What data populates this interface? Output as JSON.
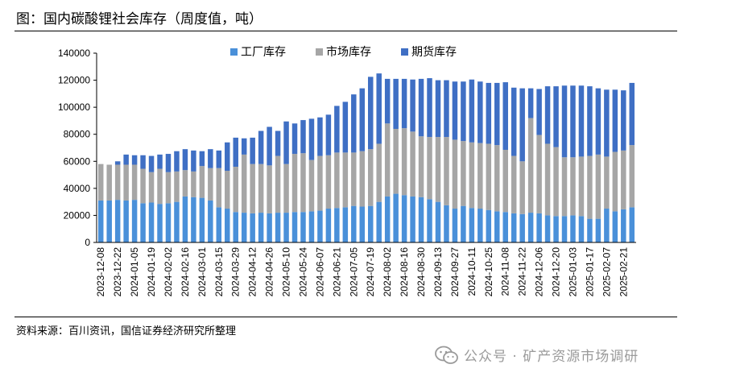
{
  "header": {
    "title": "图：国内碳酸锂社会库存（周度值，吨）"
  },
  "footer": {
    "source": "资料来源：百川资讯，国信证券经济研究所整理",
    "watermark": "公众号 · 矿产资源市场调研",
    "watermark_icon": "wechat-icon"
  },
  "colors": {
    "factory": "#4a90d9",
    "market": "#a6a6a6",
    "futures": "#3f6fc4"
  },
  "chart_data": {
    "type": "bar",
    "stacked": true,
    "ylim": [
      0,
      140000
    ],
    "yticks": [
      0,
      20000,
      40000,
      60000,
      80000,
      100000,
      120000,
      140000
    ],
    "ytick_labels": [
      "0",
      "20000",
      "40000",
      "60000",
      "80000",
      "100000",
      "120000",
      "140000"
    ],
    "legend_position": "top-center",
    "x_tick_labels": [
      "2023-12-08",
      "2023-12-22",
      "2024-01-05",
      "2024-01-19",
      "2024-02-02",
      "2024-02-16",
      "2024-03-01",
      "2024-03-15",
      "2024-03-29",
      "2024-04-12",
      "2024-04-26",
      "2024-05-10",
      "2024-05-24",
      "2024-06-07",
      "2024-06-21",
      "2024-07-05",
      "2024-07-19",
      "2024-08-02",
      "2024-08-16",
      "2024-08-30",
      "2024-09-13",
      "2024-09-27",
      "2024-10-11",
      "2024-10-25",
      "2024-11-08",
      "2024-11-22",
      "2024-12-06",
      "2024-12-20",
      "2025-01-03",
      "2025-01-17",
      "2025-02-07",
      "2025-02-21"
    ],
    "series": [
      {
        "name": "工厂库存",
        "color": "#4a90d9",
        "values": [
          31000,
          31000,
          31500,
          31000,
          31500,
          29000,
          29500,
          28500,
          29000,
          30000,
          34000,
          33500,
          33000,
          31000,
          26000,
          25000,
          22500,
          22000,
          21500,
          22000,
          21500,
          22000,
          22000,
          22500,
          22500,
          23000,
          23500,
          25000,
          25500,
          26000,
          27000,
          26500,
          27000,
          30000,
          34000,
          36000,
          35000,
          34000,
          33500,
          32000,
          30000,
          27500,
          25000,
          27000,
          25500,
          25000,
          24000,
          23000,
          22500,
          21500,
          21000,
          22000,
          21500,
          20000,
          19500,
          19500,
          20000,
          19500,
          17500,
          17500,
          25000,
          23000,
          24500,
          26000
        ]
      },
      {
        "name": "市场库存",
        "color": "#a6a6a6",
        "values": [
          27000,
          26500,
          26000,
          26500,
          26000,
          25500,
          22500,
          26000,
          23000,
          22500,
          19500,
          19000,
          23500,
          24000,
          29000,
          28000,
          33500,
          43000,
          36500,
          36000,
          35500,
          42000,
          36000,
          43000,
          43500,
          38000,
          40500,
          39500,
          41000,
          40500,
          39500,
          41000,
          42000,
          43000,
          54000,
          48000,
          49500,
          48000,
          45000,
          46000,
          48000,
          50500,
          51000,
          48000,
          48500,
          48500,
          49000,
          49000,
          46000,
          42500,
          39000,
          70000,
          58000,
          53000,
          51000,
          43500,
          43000,
          44000,
          46500,
          47500,
          38500,
          44000,
          43500,
          46000
        ]
      },
      {
        "name": "期货库存",
        "color": "#3f6fc4",
        "values": [
          0,
          0,
          2500,
          7500,
          7000,
          10000,
          12000,
          10500,
          13500,
          15000,
          15500,
          15500,
          11000,
          14000,
          13000,
          21000,
          21500,
          12000,
          19500,
          24500,
          28500,
          18500,
          31500,
          22500,
          24500,
          30500,
          28500,
          30000,
          34500,
          37500,
          43000,
          46500,
          53500,
          52000,
          33000,
          37000,
          36500,
          38500,
          42500,
          43500,
          42000,
          42000,
          43000,
          44000,
          46500,
          45500,
          45000,
          46000,
          50000,
          50500,
          54000,
          22000,
          34000,
          42500,
          45000,
          53000,
          53000,
          52500,
          51500,
          49000,
          49500,
          46000,
          44500,
          46000
        ]
      }
    ]
  }
}
